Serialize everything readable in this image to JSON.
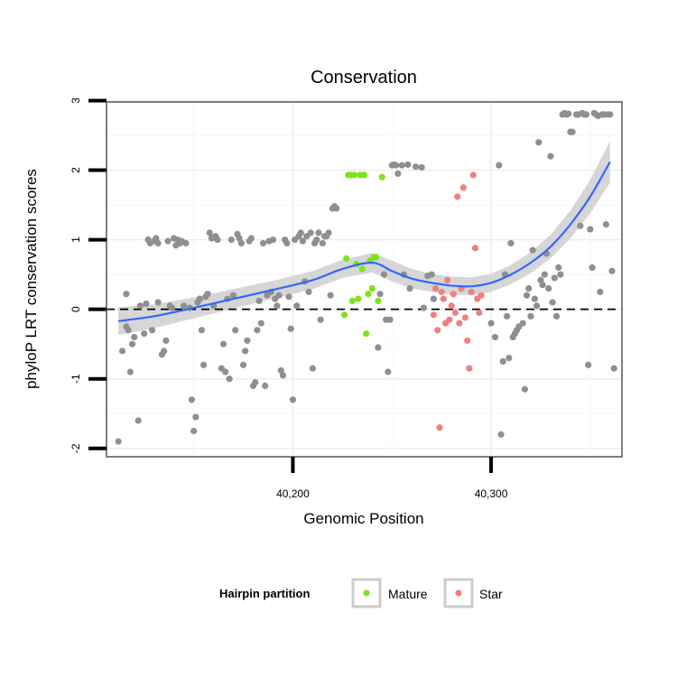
{
  "chart_data": {
    "type": "scatter",
    "title": "Conservation",
    "xlabel": "Genomic Position",
    "ylabel": "phyloP LRT conservation scores",
    "xlim": [
      40106,
      40366
    ],
    "ylim": [
      -2.12,
      2.98
    ],
    "x_ticks": [
      40200,
      40300
    ],
    "x_tick_labels": [
      "40,200",
      "40,300"
    ],
    "y_ticks": [
      -2,
      -1,
      0,
      1,
      2,
      3
    ],
    "y_tick_labels": [
      "-2",
      "-1",
      "0",
      "1",
      "2",
      "3"
    ],
    "grid": true,
    "reference_line": {
      "y": 0,
      "style": "dashed"
    },
    "legend": {
      "title": "Hairpin partition",
      "position": "bottom",
      "entries": [
        "Mature",
        "Star"
      ]
    },
    "colors": {
      "Other": "#8f8f8f",
      "Mature": "#7de31c",
      "Star": "#f08080",
      "smooth": "#3366ff",
      "ribbon": "#cfcfcf"
    },
    "series": [
      {
        "group": "Other",
        "points": [
          [
            40112,
            -1.9
          ],
          [
            40114,
            -0.6
          ],
          [
            40116,
            0.22
          ],
          [
            40116,
            -0.25
          ],
          [
            40117,
            -0.3
          ],
          [
            40118,
            -0.9
          ],
          [
            40119,
            -0.5
          ],
          [
            40120,
            -0.4
          ],
          [
            40122,
            -1.6
          ],
          [
            40123,
            0.05
          ],
          [
            40125,
            -0.35
          ],
          [
            40126,
            0.08
          ],
          [
            40127,
            1.0
          ],
          [
            40128,
            0.95
          ],
          [
            40129,
            -0.3
          ],
          [
            40130,
            0.98
          ],
          [
            40131,
            1.02
          ],
          [
            40132,
            0.95
          ],
          [
            40132,
            0.1
          ],
          [
            40134,
            -0.65
          ],
          [
            40135,
            -0.6
          ],
          [
            40136,
            -0.45
          ],
          [
            40137,
            0.98
          ],
          [
            40138,
            0.05
          ],
          [
            40139,
            0.02
          ],
          [
            40140,
            1.02
          ],
          [
            40141,
            0.92
          ],
          [
            40142,
            1.0
          ],
          [
            40143,
            0.95
          ],
          [
            40144,
            0.98
          ],
          [
            40145,
            0.05
          ],
          [
            40146,
            0.95
          ],
          [
            40148,
            0.02
          ],
          [
            40149,
            -1.3
          ],
          [
            40150,
            -1.75
          ],
          [
            40151,
            -1.55
          ],
          [
            40152,
            0.1
          ],
          [
            40153,
            0.15
          ],
          [
            40154,
            -0.3
          ],
          [
            40155,
            -0.8
          ],
          [
            40156,
            0.18
          ],
          [
            40157,
            0.22
          ],
          [
            40158,
            1.1
          ],
          [
            40159,
            1.02
          ],
          [
            40160,
            0.05
          ],
          [
            40161,
            1.05
          ],
          [
            40162,
            1.0
          ],
          [
            40164,
            -0.85
          ],
          [
            40165,
            -0.5
          ],
          [
            40166,
            -0.9
          ],
          [
            40167,
            0.15
          ],
          [
            40168,
            -1.0
          ],
          [
            40169,
            1.0
          ],
          [
            40170,
            0.2
          ],
          [
            40171,
            -0.3
          ],
          [
            40172,
            1.08
          ],
          [
            40173,
            1.02
          ],
          [
            40174,
            0.95
          ],
          [
            40175,
            -0.8
          ],
          [
            40176,
            -0.6
          ],
          [
            40177,
            -0.45
          ],
          [
            40178,
            0.98
          ],
          [
            40179,
            1.02
          ],
          [
            40180,
            -1.1
          ],
          [
            40181,
            -1.05
          ],
          [
            40182,
            -0.3
          ],
          [
            40183,
            0.12
          ],
          [
            40184,
            -0.2
          ],
          [
            40185,
            0.95
          ],
          [
            40186,
            -1.1
          ],
          [
            40187,
            0.2
          ],
          [
            40188,
            0.98
          ],
          [
            40189,
            0.25
          ],
          [
            40190,
            1.0
          ],
          [
            40191,
            0.15
          ],
          [
            40192,
            0.05
          ],
          [
            40193,
            0.2
          ],
          [
            40194,
            -0.88
          ],
          [
            40195,
            -0.95
          ],
          [
            40196,
            1.0
          ],
          [
            40197,
            0.95
          ],
          [
            40198,
            0.18
          ],
          [
            40199,
            -0.28
          ],
          [
            40200,
            -1.3
          ],
          [
            40201,
            1.0
          ],
          [
            40202,
            0.05
          ],
          [
            40203,
            1.05
          ],
          [
            40204,
            1.1
          ],
          [
            40205,
            0.98
          ],
          [
            40206,
            0.4
          ],
          [
            40207,
            1.05
          ],
          [
            40208,
            0.25
          ],
          [
            40209,
            1.1
          ],
          [
            40210,
            -0.85
          ],
          [
            40211,
            0.95
          ],
          [
            40212,
            1.0
          ],
          [
            40213,
            1.1
          ],
          [
            40214,
            -0.15
          ],
          [
            40215,
            0.95
          ],
          [
            40216,
            1.05
          ],
          [
            40217,
            1.05
          ],
          [
            40218,
            1.1
          ],
          [
            40219,
            0.2
          ],
          [
            40220,
            1.45
          ],
          [
            40221,
            1.48
          ],
          [
            40222,
            1.45
          ],
          [
            40243,
            -0.55
          ],
          [
            40244,
            0.22
          ],
          [
            40246,
            0.5
          ],
          [
            40247,
            -0.15
          ],
          [
            40248,
            -0.9
          ],
          [
            40249,
            -0.15
          ],
          [
            40250,
            2.07
          ],
          [
            40251,
            2.08
          ],
          [
            40252,
            2.07
          ],
          [
            40253,
            1.95
          ],
          [
            40255,
            2.07
          ],
          [
            40256,
            0.5
          ],
          [
            40258,
            2.08
          ],
          [
            40259,
            0.3
          ],
          [
            40262,
            2.05
          ],
          [
            40265,
            2.04
          ],
          [
            40266,
            0.02
          ],
          [
            40268,
            0.48
          ],
          [
            40270,
            0.5
          ],
          [
            40271,
            0.15
          ],
          [
            40300,
            -0.2
          ],
          [
            40302,
            -0.4
          ],
          [
            40304,
            2.07
          ],
          [
            40305,
            -1.8
          ],
          [
            40306,
            -0.75
          ],
          [
            40307,
            0.5
          ],
          [
            40308,
            -0.1
          ],
          [
            40309,
            -0.7
          ],
          [
            40310,
            0.95
          ],
          [
            40311,
            -0.4
          ],
          [
            40312,
            -0.35
          ],
          [
            40313,
            -0.3
          ],
          [
            40314,
            -0.25
          ],
          [
            40316,
            -0.2
          ],
          [
            40317,
            -1.15
          ],
          [
            40318,
            0.2
          ],
          [
            40319,
            0.3
          ],
          [
            40320,
            -0.1
          ],
          [
            40321,
            0.85
          ],
          [
            40322,
            0.15
          ],
          [
            40323,
            0.05
          ],
          [
            40324,
            2.4
          ],
          [
            40325,
            0.42
          ],
          [
            40326,
            0.35
          ],
          [
            40327,
            0.5
          ],
          [
            40328,
            0.8
          ],
          [
            40329,
            0.3
          ],
          [
            40330,
            2.2
          ],
          [
            40331,
            0.1
          ],
          [
            40332,
            0.45
          ],
          [
            40333,
            -0.1
          ],
          [
            40334,
            0.6
          ],
          [
            40335,
            0.5
          ],
          [
            40336,
            2.8
          ],
          [
            40337,
            2.82
          ],
          [
            40338,
            2.8
          ],
          [
            40339,
            2.81
          ],
          [
            40340,
            2.55
          ],
          [
            40341,
            2.55
          ],
          [
            40343,
            2.8
          ],
          [
            40344,
            2.8
          ],
          [
            40345,
            1.2
          ],
          [
            40346,
            2.82
          ],
          [
            40347,
            2.8
          ],
          [
            40348,
            2.8
          ],
          [
            40349,
            -0.8
          ],
          [
            40350,
            1.15
          ],
          [
            40351,
            0.6
          ],
          [
            40352,
            2.82
          ],
          [
            40353,
            2.8
          ],
          [
            40354,
            2.78
          ],
          [
            40355,
            0.25
          ],
          [
            40356,
            2.8
          ],
          [
            40357,
            2.8
          ],
          [
            40358,
            1.22
          ],
          [
            40359,
            2.8
          ],
          [
            40360,
            2.8
          ],
          [
            40361,
            0.55
          ],
          [
            40362,
            -0.85
          ]
        ]
      },
      {
        "group": "Mature",
        "points": [
          [
            40226,
            -0.08
          ],
          [
            40227,
            0.73
          ],
          [
            40228,
            1.93
          ],
          [
            40229,
            1.93
          ],
          [
            40230,
            0.12
          ],
          [
            40231,
            1.93
          ],
          [
            40232,
            0.65
          ],
          [
            40233,
            0.15
          ],
          [
            40234,
            1.93
          ],
          [
            40235,
            0.58
          ],
          [
            40236,
            1.93
          ],
          [
            40237,
            -0.35
          ],
          [
            40238,
            0.22
          ],
          [
            40239,
            0.7
          ],
          [
            40240,
            0.3
          ],
          [
            40241,
            0.75
          ],
          [
            40242,
            0.75
          ],
          [
            40243,
            0.12
          ],
          [
            40245,
            1.9
          ]
        ]
      },
      {
        "group": "Star",
        "points": [
          [
            40271,
            -0.08
          ],
          [
            40272,
            0.3
          ],
          [
            40273,
            -0.3
          ],
          [
            40274,
            -1.7
          ],
          [
            40275,
            0.25
          ],
          [
            40276,
            0.15
          ],
          [
            40277,
            -0.2
          ],
          [
            40278,
            0.42
          ],
          [
            40279,
            -0.15
          ],
          [
            40280,
            0.05
          ],
          [
            40281,
            0.22
          ],
          [
            40282,
            -0.05
          ],
          [
            40283,
            1.62
          ],
          [
            40284,
            -0.2
          ],
          [
            40285,
            0.3
          ],
          [
            40286,
            1.75
          ],
          [
            40287,
            -0.12
          ],
          [
            40288,
            -0.45
          ],
          [
            40289,
            -0.85
          ],
          [
            40290,
            0.25
          ],
          [
            40291,
            1.93
          ],
          [
            40292,
            0.88
          ],
          [
            40293,
            0.15
          ],
          [
            40294,
            -0.05
          ],
          [
            40295,
            0.2
          ]
        ]
      }
    ],
    "smooth": [
      [
        40112,
        -0.17
      ],
      [
        40130,
        -0.1
      ],
      [
        40150,
        0.02
      ],
      [
        40170,
        0.15
      ],
      [
        40190,
        0.28
      ],
      [
        40210,
        0.42
      ],
      [
        40225,
        0.58
      ],
      [
        40240,
        0.67
      ],
      [
        40250,
        0.55
      ],
      [
        40260,
        0.44
      ],
      [
        40270,
        0.38
      ],
      [
        40280,
        0.34
      ],
      [
        40290,
        0.33
      ],
      [
        40300,
        0.38
      ],
      [
        40310,
        0.5
      ],
      [
        40320,
        0.67
      ],
      [
        40330,
        0.9
      ],
      [
        40340,
        1.22
      ],
      [
        40350,
        1.62
      ],
      [
        40360,
        2.12
      ]
    ],
    "ribbon_halfwidth": [
      0.2,
      0.17,
      0.15,
      0.14,
      0.13,
      0.13,
      0.13,
      0.14,
      0.15,
      0.14,
      0.13,
      0.13,
      0.13,
      0.13,
      0.14,
      0.15,
      0.17,
      0.2,
      0.24,
      0.3
    ]
  }
}
